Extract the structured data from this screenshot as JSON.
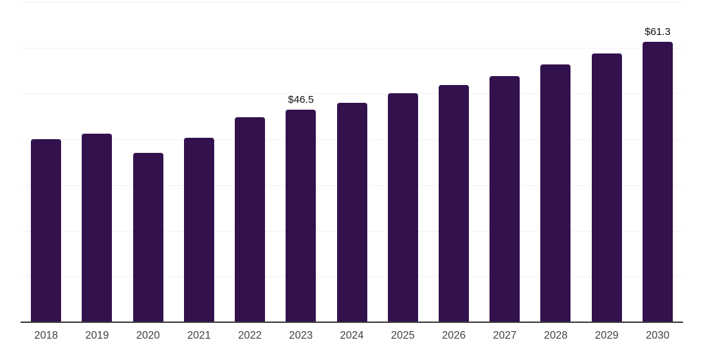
{
  "chart_data": {
    "type": "bar",
    "categories": [
      "2018",
      "2019",
      "2020",
      "2021",
      "2022",
      "2023",
      "2024",
      "2025",
      "2026",
      "2027",
      "2028",
      "2029",
      "2030"
    ],
    "values": [
      40.0,
      41.2,
      37.1,
      40.4,
      44.9,
      46.5,
      48.0,
      50.0,
      51.8,
      53.8,
      56.3,
      58.8,
      61.3
    ],
    "value_labels": [
      "",
      "",
      "",
      "",
      "",
      "$46.5",
      "",
      "",
      "",
      "",
      "",
      "",
      "$61.3"
    ],
    "ylim": [
      0,
      70
    ],
    "gridline_step": 10,
    "grid": true,
    "legend": "none",
    "y_axis_tick_labels_visible": false,
    "colors": {
      "bar": "#32114d",
      "gridline": "#f2f2f2",
      "axis_line": "#3c3c3c",
      "tick_label": "#424242",
      "value_label": "#111111",
      "background": "#ffffff"
    }
  }
}
